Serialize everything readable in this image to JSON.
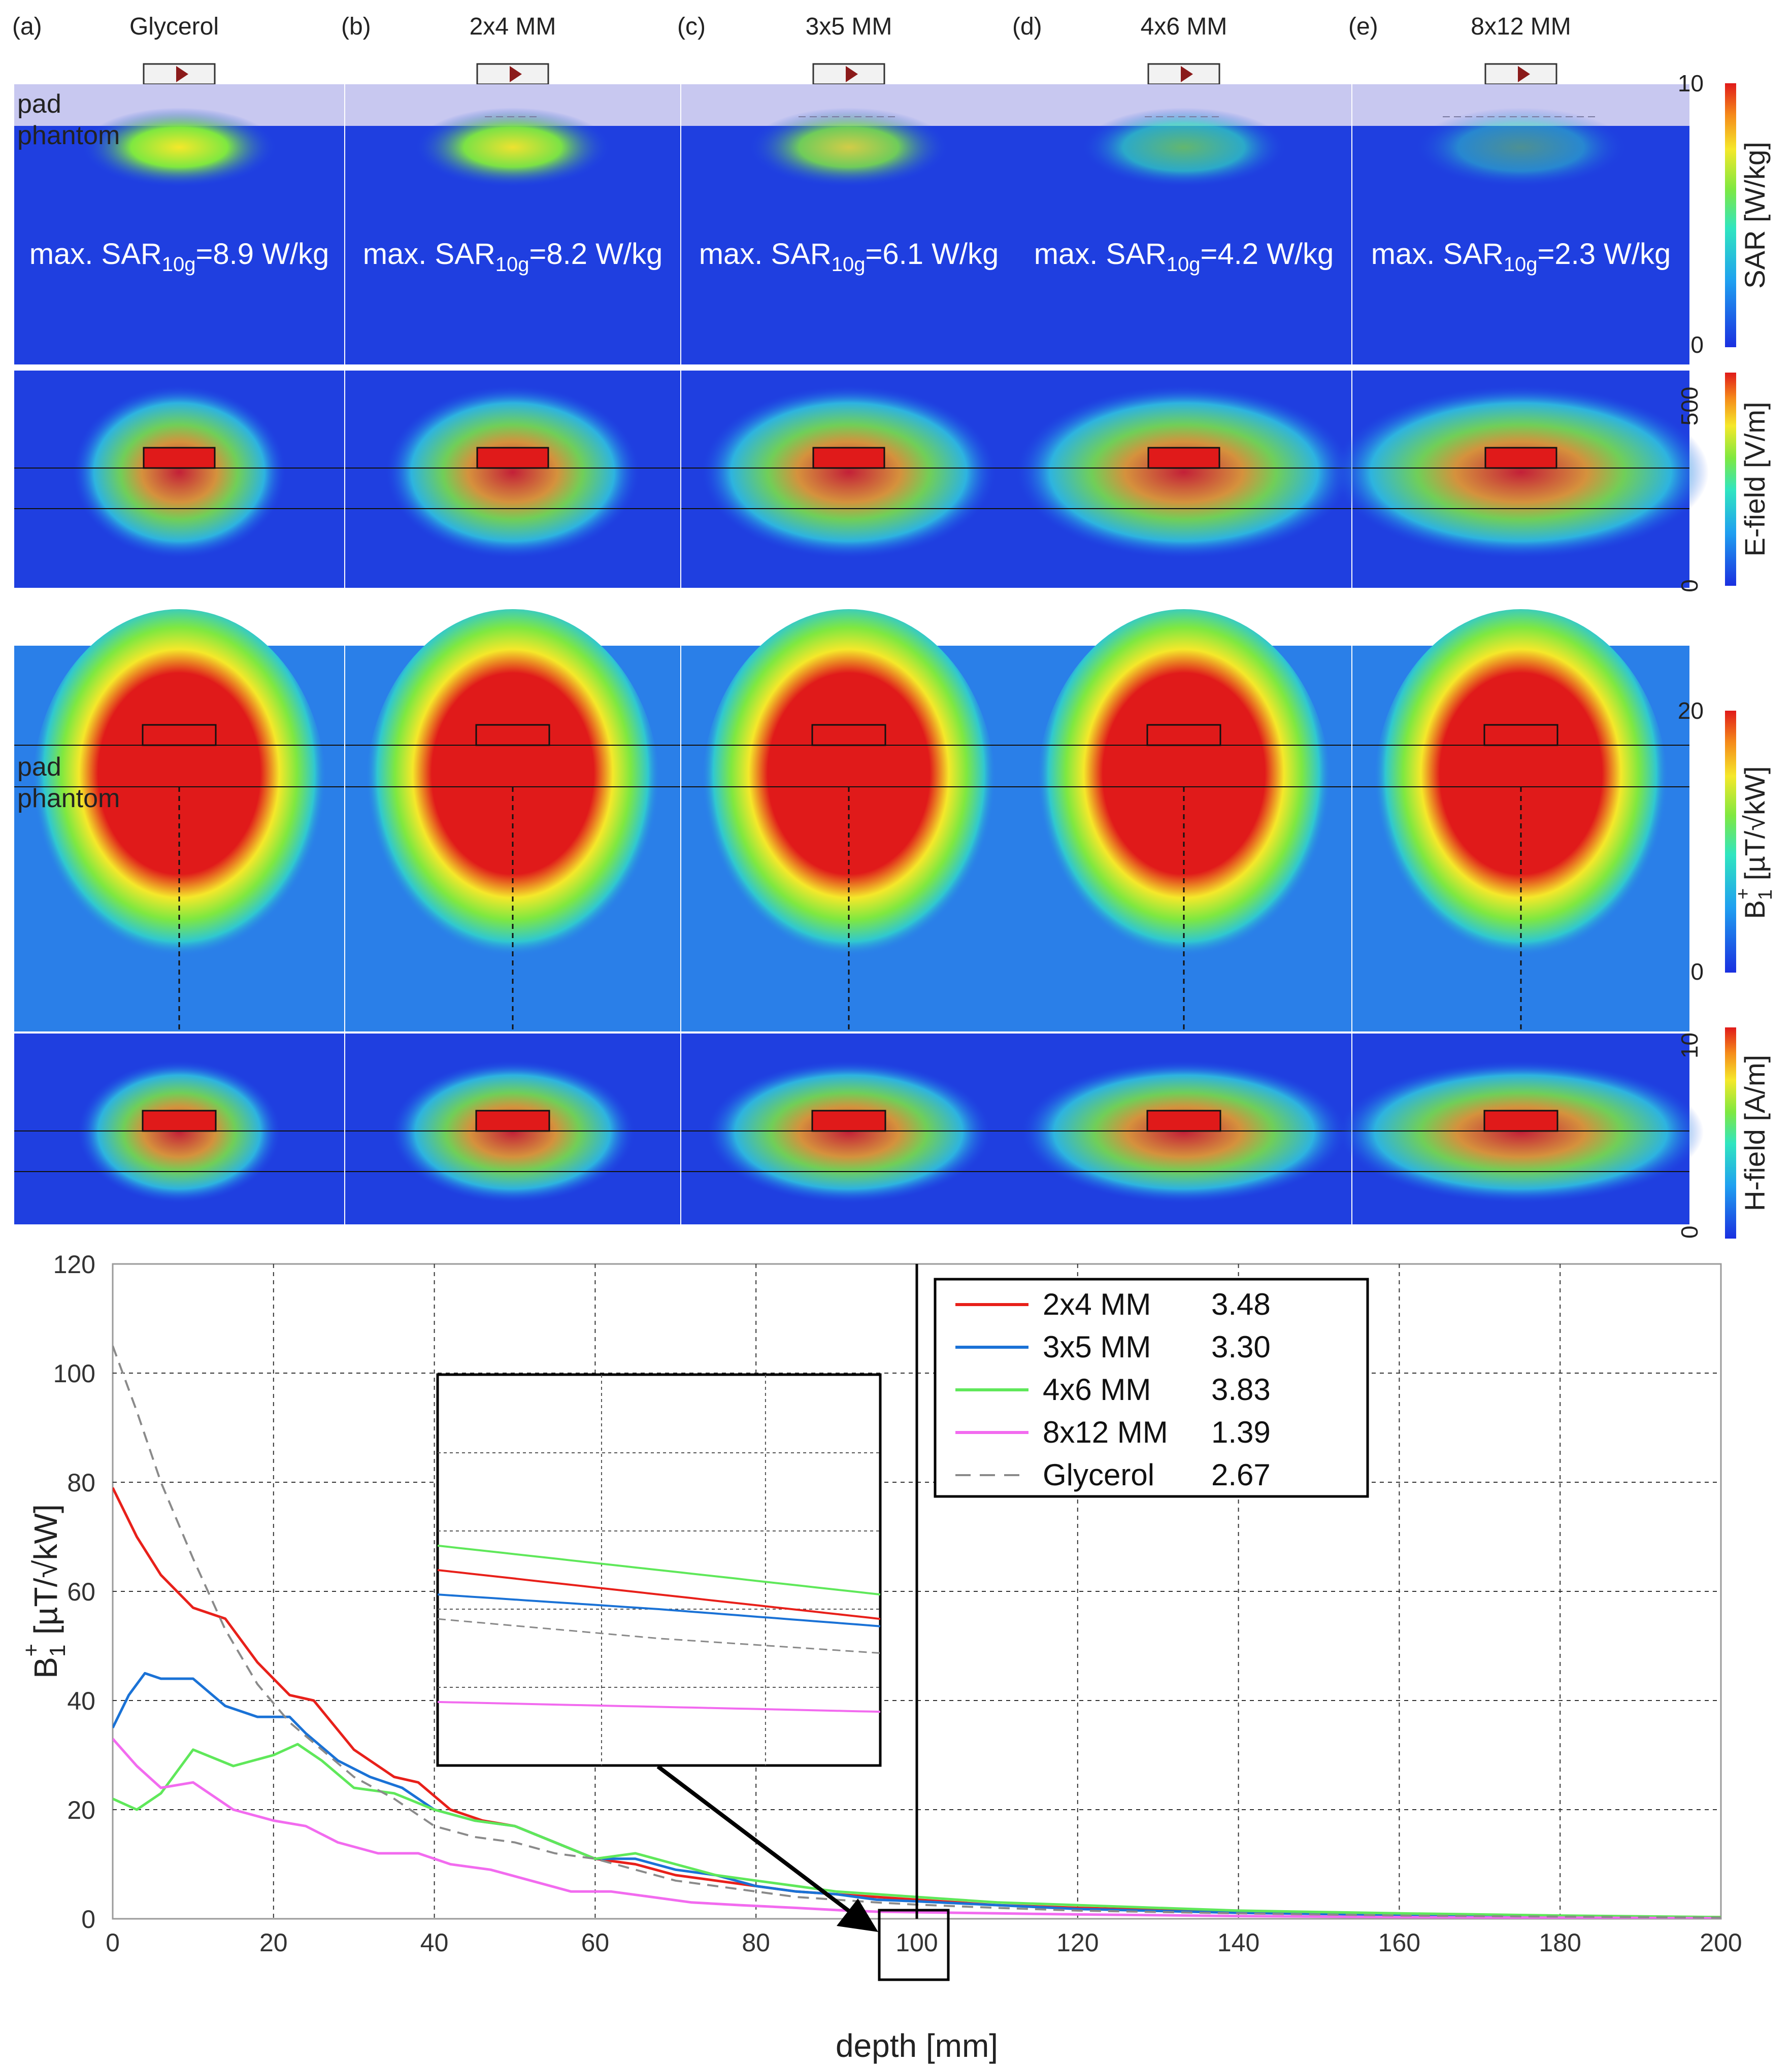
{
  "panels": [
    {
      "letter": "(a)",
      "title": "Glycerol",
      "sar_prefix": "max. SAR",
      "sar_sub": "10g",
      "sar_value": "=8.9 W/kg"
    },
    {
      "letter": "(b)",
      "title": "2x4 MM",
      "sar_prefix": "max. SAR",
      "sar_sub": "10g",
      "sar_value": "=8.2 W/kg"
    },
    {
      "letter": "(c)",
      "title": "3x5 MM",
      "sar_prefix": "max. SAR",
      "sar_sub": "10g",
      "sar_value": "=6.1 W/kg"
    },
    {
      "letter": "(d)",
      "title": "4x6 MM",
      "sar_prefix": "max. SAR",
      "sar_sub": "10g",
      "sar_value": "=4.2 W/kg"
    },
    {
      "letter": "(e)",
      "title": "8x12 MM",
      "sar_prefix": "max. SAR",
      "sar_sub": "10g",
      "sar_value": "=2.3 W/kg"
    }
  ],
  "region_labels": {
    "pad": "pad",
    "phantom": "phantom"
  },
  "colorbars": {
    "sar": {
      "label": "SAR [W/kg]",
      "max": "10",
      "min": "0"
    },
    "efield": {
      "label": "E-field [V/m]",
      "max": "500",
      "min": "0"
    },
    "b1": {
      "label_main": "B",
      "label_sub": "1",
      "label_sup": "+",
      "label_rest": " [µT/√kW]",
      "max": "20",
      "min": "0"
    },
    "hfield": {
      "label": "H-field [A/m]",
      "max": "10",
      "min": "0"
    }
  },
  "chart_data": {
    "type": "line",
    "xlabel": "depth [mm]",
    "ylabel_main": "B",
    "ylabel_sub": "1",
    "ylabel_sup": "+",
    "ylabel_rest": " [µT/√kW]",
    "xlim": [
      0,
      200
    ],
    "ylim": [
      0,
      120
    ],
    "xticks": [
      0,
      20,
      40,
      60,
      80,
      100,
      120,
      140,
      160,
      180,
      200
    ],
    "yticks": [
      0,
      20,
      40,
      60,
      80,
      100,
      120
    ],
    "grid": true,
    "legend_position": "top-right",
    "series": [
      {
        "name": "2x4 MM",
        "legend_value": "3.48",
        "color": "#e8201a",
        "dash": false,
        "x": [
          0,
          3,
          6,
          10,
          14,
          18,
          22,
          25,
          30,
          35,
          38,
          42,
          46,
          50,
          55,
          60,
          65,
          70,
          75,
          80,
          85,
          90,
          95,
          100,
          110,
          120,
          140,
          160,
          180,
          200
        ],
        "y": [
          79,
          70,
          63,
          57,
          55,
          47,
          41,
          40,
          31,
          26,
          25,
          20,
          18,
          17,
          14,
          11,
          10,
          8,
          7,
          6,
          5,
          4.5,
          4,
          3.5,
          2.5,
          2,
          1.2,
          0.8,
          0.5,
          0.3
        ]
      },
      {
        "name": "3x5 MM",
        "legend_value": "3.30",
        "color": "#1a72d6",
        "dash": false,
        "x": [
          0,
          2,
          4,
          6,
          8,
          10,
          14,
          18,
          22,
          24,
          28,
          32,
          36,
          40,
          45,
          50,
          55,
          60,
          65,
          70,
          75,
          80,
          85,
          90,
          95,
          100,
          110,
          120,
          140,
          160,
          180,
          200
        ],
        "y": [
          35,
          41,
          45,
          44,
          44,
          44,
          39,
          37,
          37,
          34,
          29,
          26,
          24,
          20,
          18,
          17,
          14,
          11,
          11,
          9,
          8,
          6,
          5,
          4.5,
          3.5,
          3.2,
          2.5,
          1.8,
          1.1,
          0.7,
          0.4,
          0.2
        ]
      },
      {
        "name": "4x6 MM",
        "legend_value": "3.83",
        "color": "#5fe85a",
        "dash": false,
        "x": [
          0,
          3,
          6,
          10,
          15,
          20,
          23,
          26,
          30,
          35,
          40,
          45,
          50,
          55,
          60,
          65,
          70,
          75,
          80,
          85,
          90,
          95,
          100,
          110,
          120,
          140,
          160,
          180,
          200
        ],
        "y": [
          22,
          20,
          23,
          31,
          28,
          30,
          32,
          29,
          24,
          23,
          20,
          18,
          17,
          14,
          11,
          12,
          10,
          8,
          7,
          6,
          5,
          4.5,
          4,
          3,
          2.5,
          1.5,
          1,
          0.6,
          0.3
        ]
      },
      {
        "name": "8x12 MM",
        "legend_value": "1.39",
        "color": "#f26bef",
        "dash": false,
        "x": [
          0,
          3,
          6,
          10,
          15,
          20,
          24,
          28,
          33,
          38,
          42,
          47,
          52,
          57,
          62,
          67,
          72,
          78,
          85,
          90,
          95,
          100,
          110,
          120,
          140,
          160,
          180,
          200
        ],
        "y": [
          33,
          28,
          24,
          25,
          20,
          18,
          17,
          14,
          12,
          12,
          10,
          9,
          7,
          5,
          5,
          4,
          3,
          2.5,
          2,
          1.6,
          1.3,
          1.2,
          1,
          0.8,
          0.5,
          0.3,
          0.2,
          0.1
        ]
      },
      {
        "name": "Glycerol",
        "legend_value": "2.67",
        "color": "#8a8a8a",
        "dash": true,
        "x": [
          0,
          3,
          6,
          10,
          14,
          18,
          22,
          26,
          30,
          35,
          40,
          45,
          50,
          55,
          60,
          65,
          70,
          75,
          80,
          85,
          90,
          95,
          100,
          110,
          120,
          140,
          160,
          180,
          200
        ],
        "y": [
          105,
          93,
          80,
          66,
          53,
          43,
          36,
          31,
          26,
          22,
          17,
          15,
          14,
          12,
          11,
          9,
          7,
          6,
          5,
          4,
          3.5,
          3,
          2.6,
          2,
          1.5,
          1,
          0.6,
          0.4,
          0.2
        ]
      }
    ]
  }
}
